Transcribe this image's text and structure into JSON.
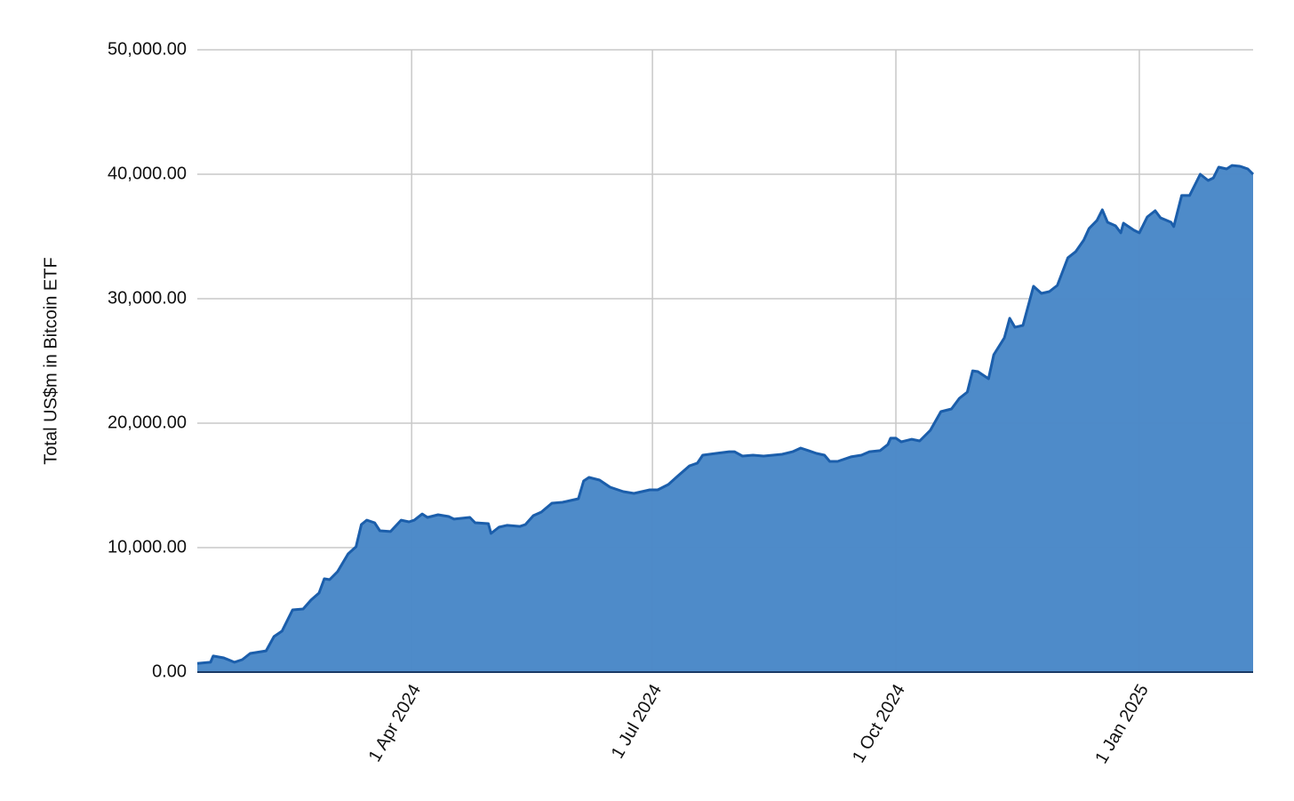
{
  "chart_data": {
    "type": "area",
    "y_label": "Total US$m in Bitcoin ETF",
    "x": [
      "2024-01-11",
      "2024-01-16",
      "2024-01-17",
      "2024-01-21",
      "2024-01-25",
      "2024-01-28",
      "2024-01-31",
      "2024-02-06",
      "2024-02-09",
      "2024-02-12",
      "2024-02-16",
      "2024-02-20",
      "2024-02-23",
      "2024-02-26",
      "2024-02-28",
      "2024-03-01",
      "2024-03-04",
      "2024-03-08",
      "2024-03-11",
      "2024-03-13",
      "2024-03-15",
      "2024-03-18",
      "2024-03-20",
      "2024-03-24",
      "2024-03-28",
      "2024-03-31",
      "2024-04-02",
      "2024-04-05",
      "2024-04-07",
      "2024-04-11",
      "2024-04-15",
      "2024-04-17",
      "2024-04-23",
      "2024-04-25",
      "2024-04-30",
      "2024-05-01",
      "2024-05-04",
      "2024-05-07",
      "2024-05-12",
      "2024-05-14",
      "2024-05-17",
      "2024-05-20",
      "2024-05-24",
      "2024-05-28",
      "2024-06-03",
      "2024-06-05",
      "2024-06-07",
      "2024-06-11",
      "2024-06-15",
      "2024-06-20",
      "2024-06-24",
      "2024-06-30",
      "2024-07-03",
      "2024-07-07",
      "2024-07-10",
      "2024-07-15",
      "2024-07-18",
      "2024-07-20",
      "2024-07-25",
      "2024-07-30",
      "2024-08-01",
      "2024-08-04",
      "2024-08-08",
      "2024-08-12",
      "2024-08-19",
      "2024-08-23",
      "2024-08-26",
      "2024-08-29",
      "2024-09-01",
      "2024-09-04",
      "2024-09-06",
      "2024-09-09",
      "2024-09-14",
      "2024-09-18",
      "2024-09-21",
      "2024-09-25",
      "2024-09-28",
      "2024-09-29",
      "2024-10-01",
      "2024-10-03",
      "2024-10-07",
      "2024-10-10",
      "2024-10-14",
      "2024-10-18",
      "2024-10-22",
      "2024-10-25",
      "2024-10-28",
      "2024-10-30",
      "2024-11-01",
      "2024-11-05",
      "2024-11-07",
      "2024-11-11",
      "2024-11-13",
      "2024-11-15",
      "2024-11-18",
      "2024-11-22",
      "2024-11-25",
      "2024-11-28",
      "2024-12-01",
      "2024-12-05",
      "2024-12-08",
      "2024-12-11",
      "2024-12-13",
      "2024-12-16",
      "2024-12-18",
      "2024-12-20",
      "2024-12-23",
      "2024-12-25",
      "2024-12-26",
      "2024-12-30",
      "2025-01-01",
      "2025-01-04",
      "2025-01-07",
      "2025-01-09",
      "2025-01-13",
      "2025-01-14",
      "2025-01-17",
      "2025-01-20",
      "2025-01-22",
      "2025-01-24",
      "2025-01-27",
      "2025-01-29",
      "2025-01-31",
      "2025-02-03",
      "2025-02-05",
      "2025-02-08",
      "2025-02-11",
      "2025-02-13"
    ],
    "values": [
      700,
      790,
      1290,
      1140,
      790,
      1000,
      1500,
      1710,
      2860,
      3290,
      5000,
      5070,
      5790,
      6360,
      7500,
      7430,
      8070,
      9500,
      10070,
      11860,
      12210,
      12000,
      11360,
      11290,
      12210,
      12070,
      12210,
      12710,
      12430,
      12640,
      12500,
      12290,
      12430,
      12000,
      11930,
      11140,
      11640,
      11790,
      11710,
      11860,
      12570,
      12860,
      13570,
      13640,
      13930,
      15360,
      15640,
      15430,
      14860,
      14500,
      14360,
      14640,
      14640,
      15070,
      15640,
      16570,
      16790,
      17430,
      17570,
      17710,
      17710,
      17360,
      17430,
      17360,
      17500,
      17710,
      18000,
      17790,
      17570,
      17430,
      16930,
      16930,
      17290,
      17430,
      17710,
      17790,
      18290,
      18790,
      18790,
      18500,
      18710,
      18570,
      19430,
      20930,
      21140,
      22000,
      22500,
      24210,
      24140,
      23570,
      25500,
      26860,
      28430,
      27710,
      27860,
      31000,
      30430,
      30570,
      31070,
      33290,
      33790,
      34710,
      35640,
      36290,
      37140,
      36140,
      35860,
      35290,
      36070,
      35500,
      35290,
      36570,
      37070,
      36500,
      36140,
      35790,
      38290,
      38290,
      39140,
      40000,
      39500,
      39710,
      40570,
      40430,
      40710,
      40640,
      40430,
      40000
    ],
    "color": "#4a89c8",
    "line_color": "#1b5eab",
    "xlim": [
      "2024-01-11",
      "2025-02-13"
    ],
    "xticks": [
      {
        "value": "2024-04-01",
        "label": "1 Apr 2024"
      },
      {
        "value": "2024-07-01",
        "label": "1 Jul 2024"
      },
      {
        "value": "2024-10-01",
        "label": "1 Oct 2024"
      },
      {
        "value": "2025-01-01",
        "label": "1 Jan 2025"
      }
    ],
    "ylim": [
      0,
      50000
    ],
    "yticks": [
      {
        "value": 0,
        "label": "0.00"
      },
      {
        "value": 10000,
        "label": "10,000.00"
      },
      {
        "value": 20000,
        "label": "20,000.00"
      },
      {
        "value": 30000,
        "label": "30,000.00"
      },
      {
        "value": 40000,
        "label": "40,000.00"
      },
      {
        "value": 50000,
        "label": "50,000.00"
      }
    ],
    "grid": true
  }
}
